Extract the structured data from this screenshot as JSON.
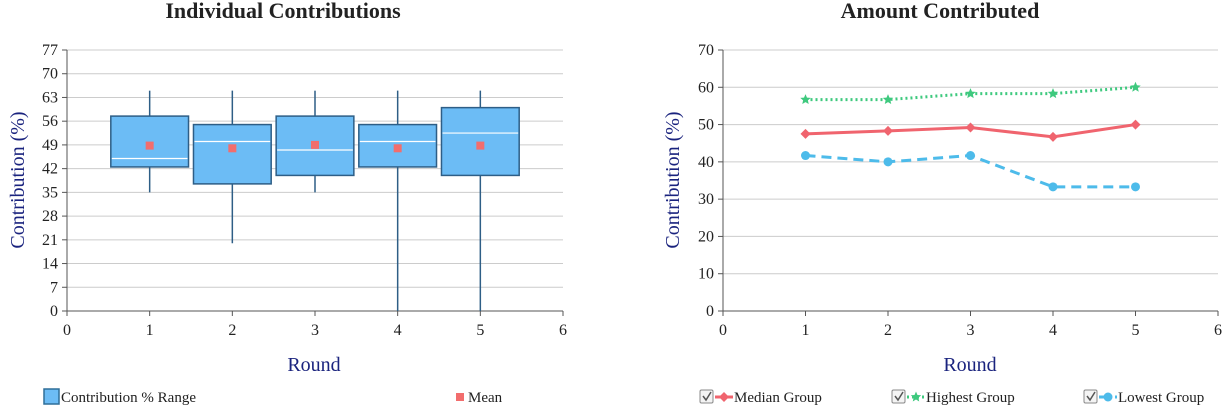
{
  "chart_data": [
    {
      "type": "box",
      "title": "Individual Contributions",
      "xlabel": "Round",
      "ylabel": "Contribution (%)",
      "xlim": [
        0,
        6
      ],
      "ylim": [
        0,
        77
      ],
      "xticks": [
        0,
        1,
        2,
        3,
        4,
        5,
        6
      ],
      "yticks": [
        0,
        7,
        14,
        21,
        28,
        35,
        42,
        49,
        56,
        63,
        70,
        77
      ],
      "box_color": "#6cbcf5",
      "mean_color": "#f26d6d",
      "boxes": [
        {
          "x": 1,
          "low": 35,
          "q1": 42.5,
          "median": 45,
          "q3": 57.5,
          "high": 65,
          "mean": 48.8
        },
        {
          "x": 2,
          "low": 20,
          "q1": 37.5,
          "median": 50,
          "q3": 55,
          "high": 65,
          "mean": 48
        },
        {
          "x": 3,
          "low": 35,
          "q1": 40,
          "median": 47.5,
          "q3": 57.5,
          "high": 65,
          "mean": 49
        },
        {
          "x": 4,
          "low": 0,
          "q1": 42.5,
          "median": 50,
          "q3": 55,
          "high": 65,
          "mean": 48
        },
        {
          "x": 5,
          "low": 0,
          "q1": 40,
          "median": 52.5,
          "q3": 60,
          "high": 65,
          "mean": 48.8
        }
      ],
      "legend": {
        "placement": "bottom",
        "range_label": "Contribution % Range",
        "mean_label": "Mean"
      }
    },
    {
      "type": "line",
      "title": "Amount Contributed",
      "xlabel": "Round",
      "ylabel": "Contribution (%)",
      "xlim": [
        0,
        6
      ],
      "ylim": [
        0,
        70
      ],
      "xticks": [
        0,
        1,
        2,
        3,
        4,
        5,
        6
      ],
      "yticks": [
        0,
        10,
        20,
        30,
        40,
        50,
        60,
        70
      ],
      "x": [
        1,
        2,
        3,
        4,
        5
      ],
      "series": [
        {
          "name": "Median Group",
          "values": [
            47.5,
            48.3,
            49.2,
            46.7,
            50
          ],
          "color": "#f0646e",
          "dash": "solid",
          "marker": "diamond"
        },
        {
          "name": "Highest Group",
          "values": [
            56.7,
            56.7,
            58.3,
            58.3,
            60
          ],
          "color": "#3ec97e",
          "dash": "dotted",
          "marker": "star"
        },
        {
          "name": "Lowest Group",
          "values": [
            41.7,
            40,
            41.7,
            33.3,
            33.3
          ],
          "color": "#4dbbea",
          "dash": "dashed",
          "marker": "circle"
        }
      ],
      "legend": {
        "placement": "bottom"
      }
    }
  ]
}
